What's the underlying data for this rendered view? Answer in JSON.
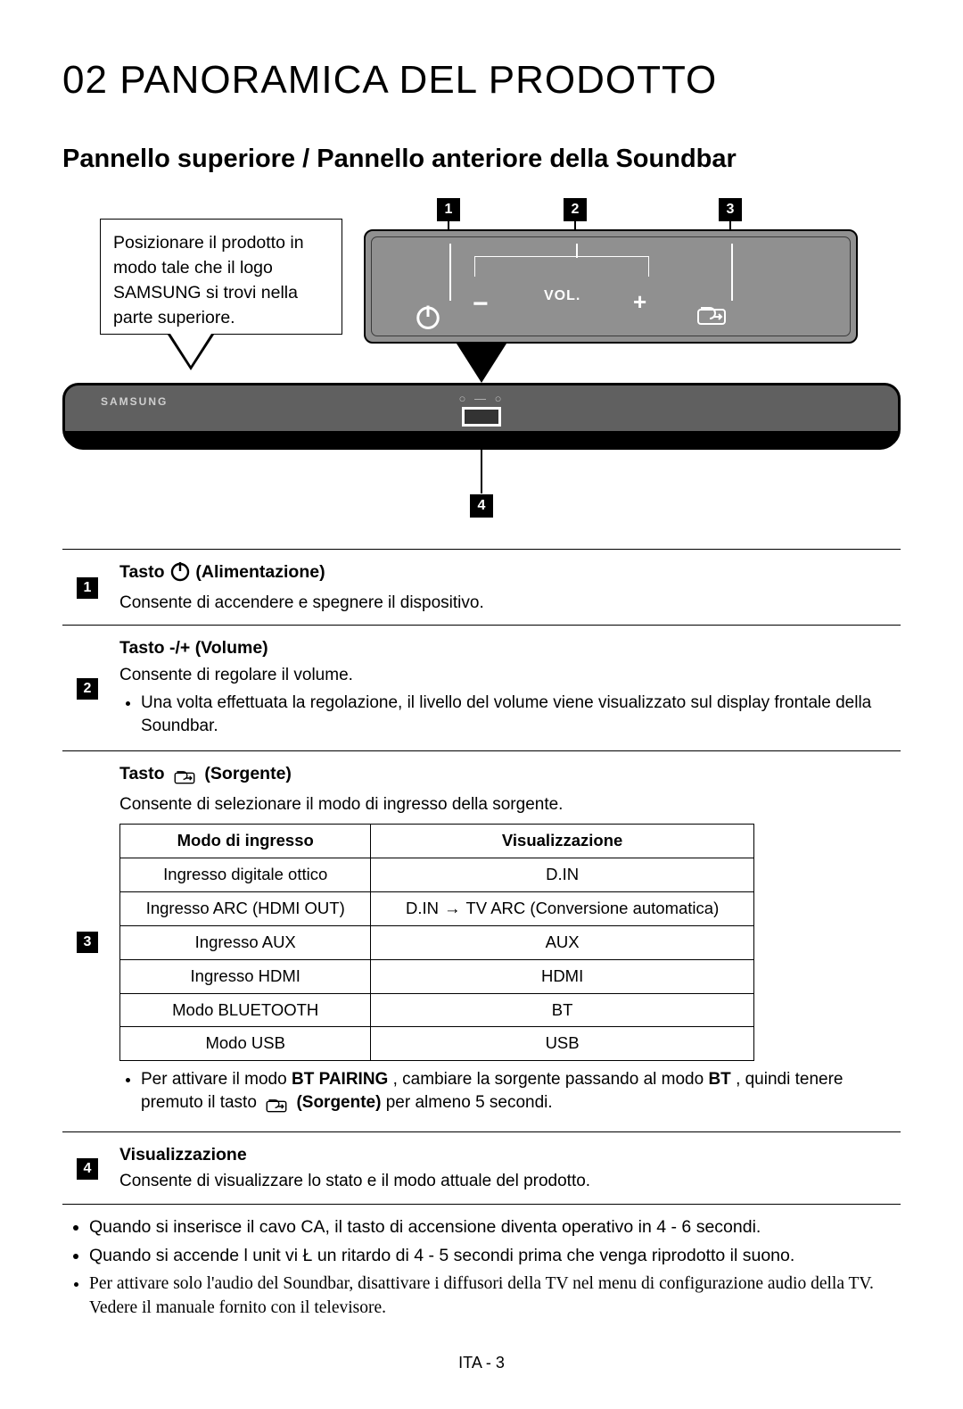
{
  "chapter": {
    "number": "02",
    "title": "PANORAMICA DEL PRODOTTO"
  },
  "section_title": "Pannello superiore / Pannello anteriore della Soundbar",
  "callout": "Posizionare il prodotto in modo tale che il logo SAMSUNG si trovi nella parte superiore.",
  "panel": {
    "vol_label": "VOL.",
    "minus": "−",
    "plus": "+",
    "logo": "SAMSUNG"
  },
  "labels": {
    "n1": "1",
    "n2": "2",
    "n3": "3",
    "n4": "4"
  },
  "rows": {
    "r1": {
      "title_pre": "Tasto ",
      "title_post": " (Alimentazione)",
      "desc": "Consente di accendere e spegnere il dispositivo."
    },
    "r2": {
      "title": "Tasto -/+ (Volume)",
      "desc": "Consente di regolare il volume.",
      "bullet": "Una volta effettuata la regolazione, il livello del volume viene visualizzato sul display frontale della Soundbar."
    },
    "r3": {
      "title_pre": "Tasto ",
      "title_post": " (Sorgente)",
      "desc": "Consente di selezionare il modo di ingresso della sorgente.",
      "table": {
        "head": [
          "Modo di ingresso",
          "Visualizzazione"
        ],
        "rows": [
          [
            "Ingresso digitale ottico",
            "D.IN"
          ],
          [
            "Ingresso ARC (HDMI OUT)",
            "D.IN → TV ARC (Conversione automatica)"
          ],
          [
            "Ingresso AUX",
            "AUX"
          ],
          [
            "Ingresso HDMI",
            "HDMI"
          ],
          [
            "Modo BLUETOOTH",
            "BT"
          ],
          [
            "Modo USB",
            "USB"
          ]
        ]
      },
      "bullet_parts": {
        "p1": "Per attivare il modo ",
        "bt_pairing": "BT PAIRING",
        "p2": " , cambiare la sorgente passando al modo",
        "bt": "BT",
        "p3": " , quindi tenere premuto il tasto ",
        "sorgente": "(Sorgente)",
        "p4": " per almeno 5 secondi."
      }
    },
    "r4": {
      "title": "Visualizzazione",
      "desc": "Consente di visualizzare lo stato e il modo attuale del prodotto."
    }
  },
  "notes": [
    "Quando si inserisce il cavo CA, il tasto di accensione diventa operativo in 4 - 6 secondi.",
    "Quando si accende l unit  vi Ł un ritardo di 4 - 5 secondi prima che venga riprodotto il suono.",
    "Per attivare solo l'audio del Soundbar, disattivare i diffusori della TV nel menu di configurazione audio della TV. Vedere il manuale fornito con il televisore."
  ],
  "footer": "ITA - 3",
  "colors": {
    "panel_bg": "#909090",
    "bar_bg": "#606060"
  }
}
